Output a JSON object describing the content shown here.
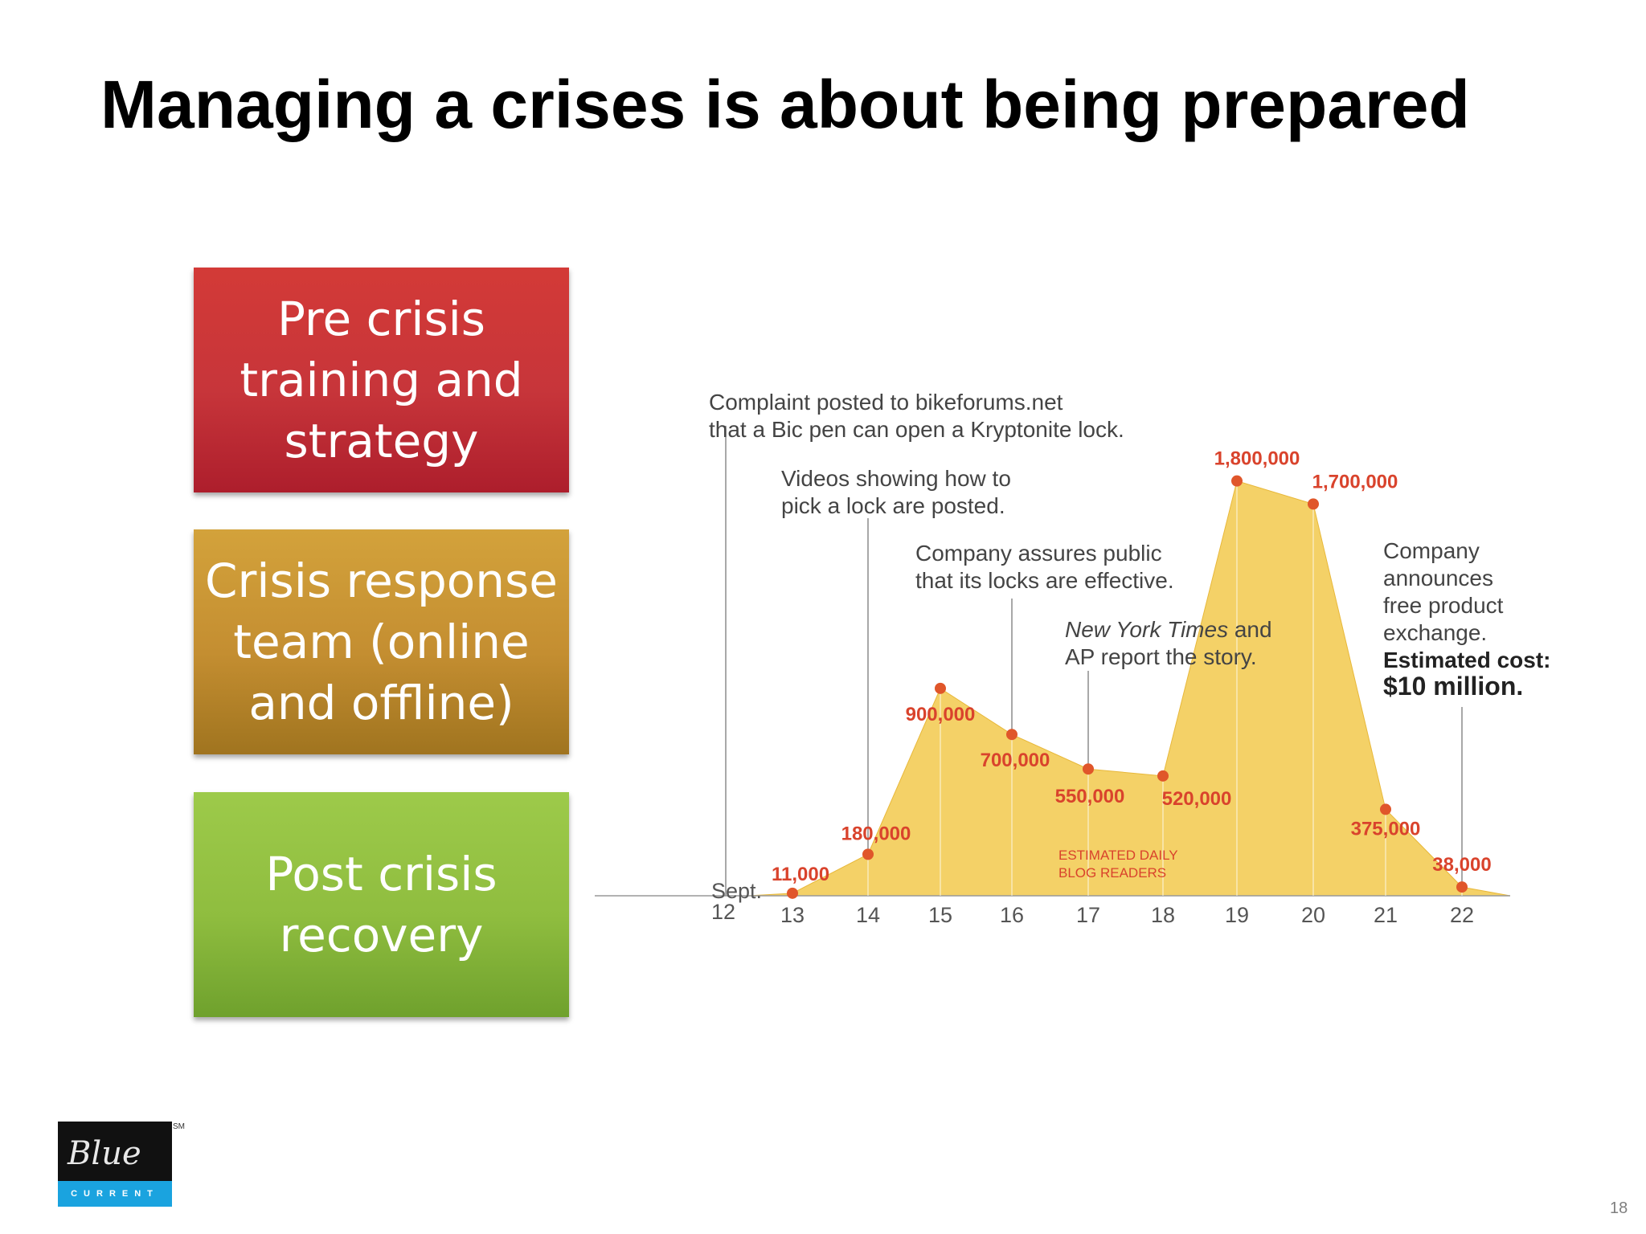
{
  "slide": {
    "title": "Managing a crises is about being prepared",
    "page_number": "18"
  },
  "phases": [
    {
      "label": "Pre crisis training and strategy",
      "color": "#c7353a"
    },
    {
      "label": "Crisis response team (online and offline)",
      "color": "#c48e31"
    },
    {
      "label": "Post crisis recovery",
      "color": "#8fbd3f"
    }
  ],
  "logo": {
    "script_text": "Blue",
    "bar_text": "CURRENT",
    "mark": "SM"
  },
  "chart_data": {
    "type": "area",
    "x_labels": [
      "Sept.\n12",
      "13",
      "14",
      "15",
      "16",
      "17",
      "18",
      "19",
      "20",
      "21",
      "22"
    ],
    "series": [
      {
        "values": [
          null,
          11000,
          180000,
          900000,
          700000,
          550000,
          520000,
          1800000,
          1700000,
          375000,
          38000
        ],
        "data_labels": [
          "",
          "11,000",
          "180,000",
          "900,000",
          "700,000",
          "550,000",
          "520,000",
          "1,800,000",
          "1,700,000",
          "375,000",
          "38,000"
        ],
        "color": "#f2c94c",
        "point_color": "#e0562a",
        "label_color": "#d9432c"
      }
    ],
    "ylim": [
      0,
      1900000
    ],
    "series_label": "ESTIMATED DAILY BLOG READERS",
    "annotations": [
      {
        "x_index": 0,
        "text": "Complaint posted to bikeforums.net\nthat a Bic pen can open a Kryptonite lock."
      },
      {
        "x_index": 2,
        "text": "Videos showing how to\npick a lock are posted."
      },
      {
        "x_index": 4,
        "text": "Company assures public\nthat its locks are effective."
      },
      {
        "x_index": 5,
        "text": "New York Times and\nAP report the story."
      },
      {
        "x_index": 10,
        "text": "Company\nannounces\nfree product\nexchange.\nEstimated cost:\n$10 million."
      }
    ]
  }
}
